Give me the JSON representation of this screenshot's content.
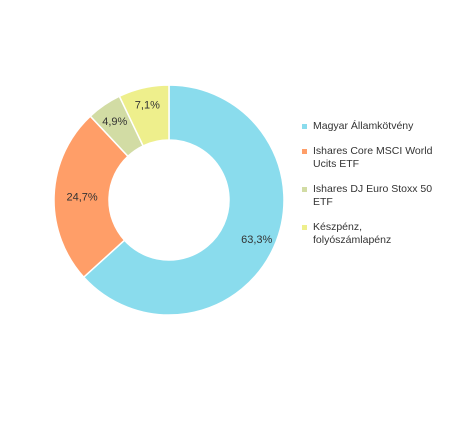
{
  "chart_data": {
    "type": "pie",
    "donut": true,
    "legend_position": "right",
    "series": [
      {
        "name": "Magyar Államkötvény",
        "value": 63.3,
        "label": "63,3%",
        "color": "#8adced"
      },
      {
        "name": "Ishares Core MSCI World Ucits ETF",
        "value": 24.7,
        "label": "24,7%",
        "color": "#ff9e68"
      },
      {
        "name": "Ishares DJ Euro Stoxx 50 ETF",
        "value": 4.9,
        "label": "4,9%",
        "color": "#d2dca4"
      },
      {
        "name": "Készpénz, folyószámlapénz",
        "value": 7.1,
        "label": "7,1%",
        "color": "#eeef8c"
      }
    ]
  }
}
